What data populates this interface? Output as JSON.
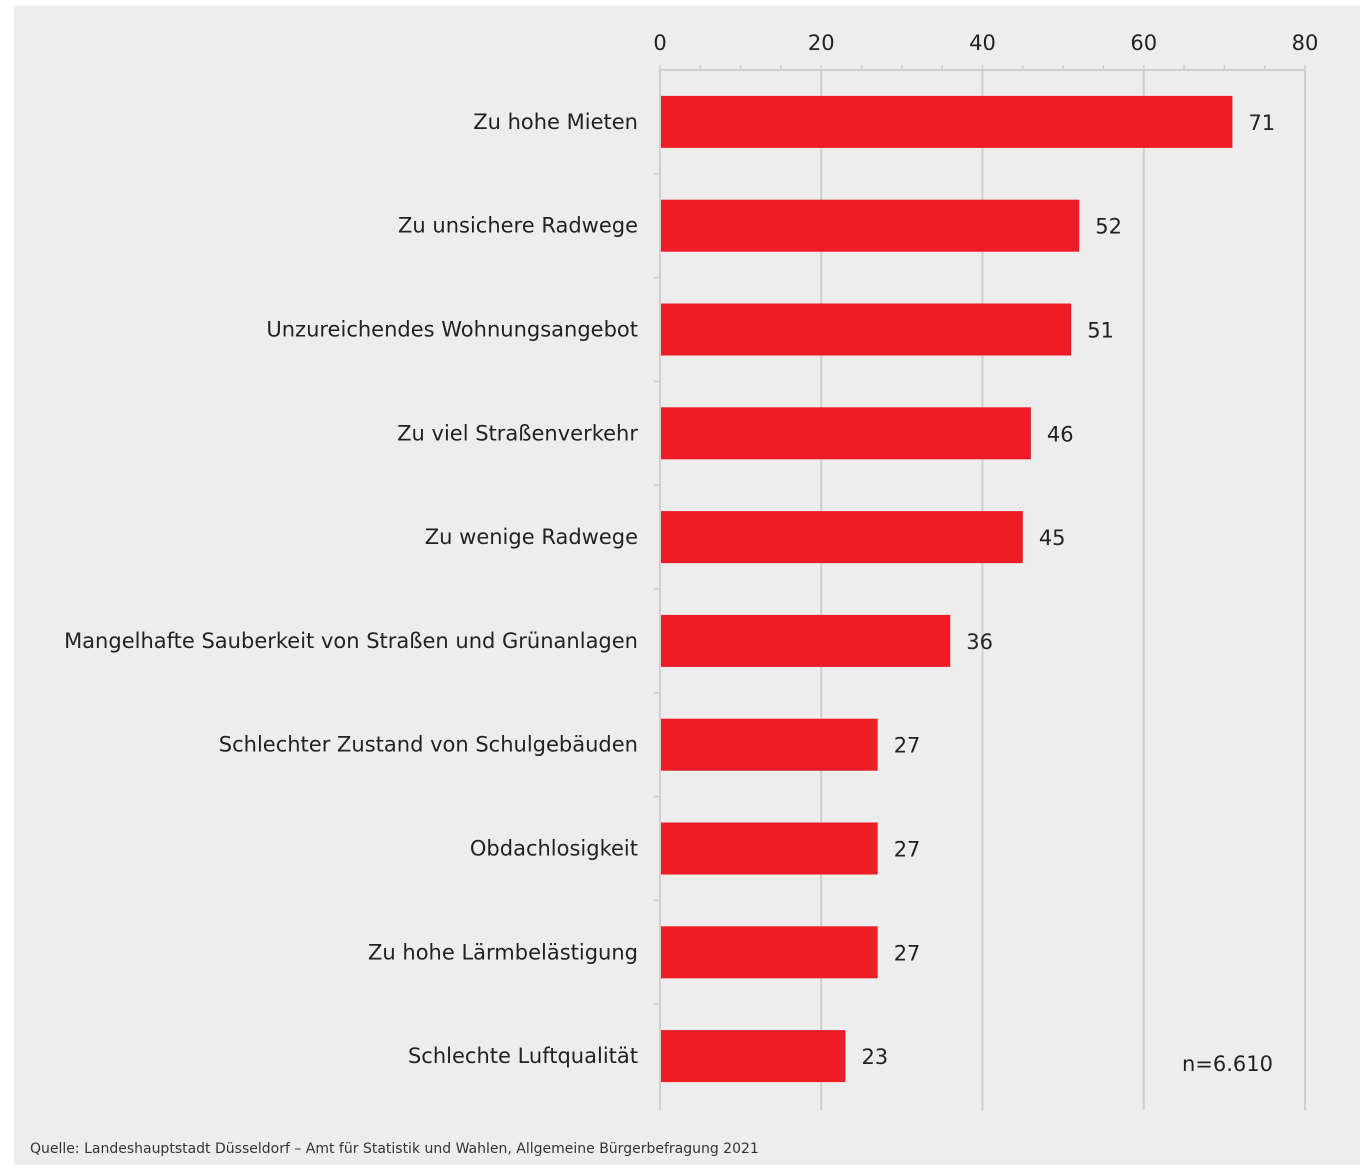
{
  "chart_data": {
    "type": "bar",
    "orientation": "horizontal",
    "categories": [
      "Zu hohe Mieten",
      "Zu unsichere Radwege",
      "Unzureichendes Wohnungsangebot",
      "Zu viel Straßenverkehr",
      "Zu wenige Radwege",
      "Mangelhafte Sauberkeit von Straßen und Grünanlagen",
      "Schlechter Zustand von Schulgebäuden",
      "Obdachlosigkeit",
      "Zu hohe Lärmbelästigung",
      "Schlechte Luftqualität"
    ],
    "values": [
      71,
      52,
      51,
      46,
      45,
      36,
      27,
      27,
      27,
      23
    ],
    "data_labels": [
      "71",
      "52",
      "51",
      "46",
      "45",
      "36",
      "27",
      "27",
      "27",
      "23"
    ],
    "xlim": [
      0,
      80
    ],
    "x_ticks": [
      0,
      20,
      40,
      60,
      80
    ],
    "x_axis_position": "top",
    "grid": true,
    "bar_color": "#ee1c25",
    "annotation": "n=6.610",
    "source": "Quelle: Landeshauptstadt Düsseldorf – Amt für Statistik und Wahlen, Allgemeine Bürgerbefragung 2021"
  },
  "colors": {
    "background": "#ededed",
    "gridline": "#cfcfcf",
    "text": "#222222"
  }
}
